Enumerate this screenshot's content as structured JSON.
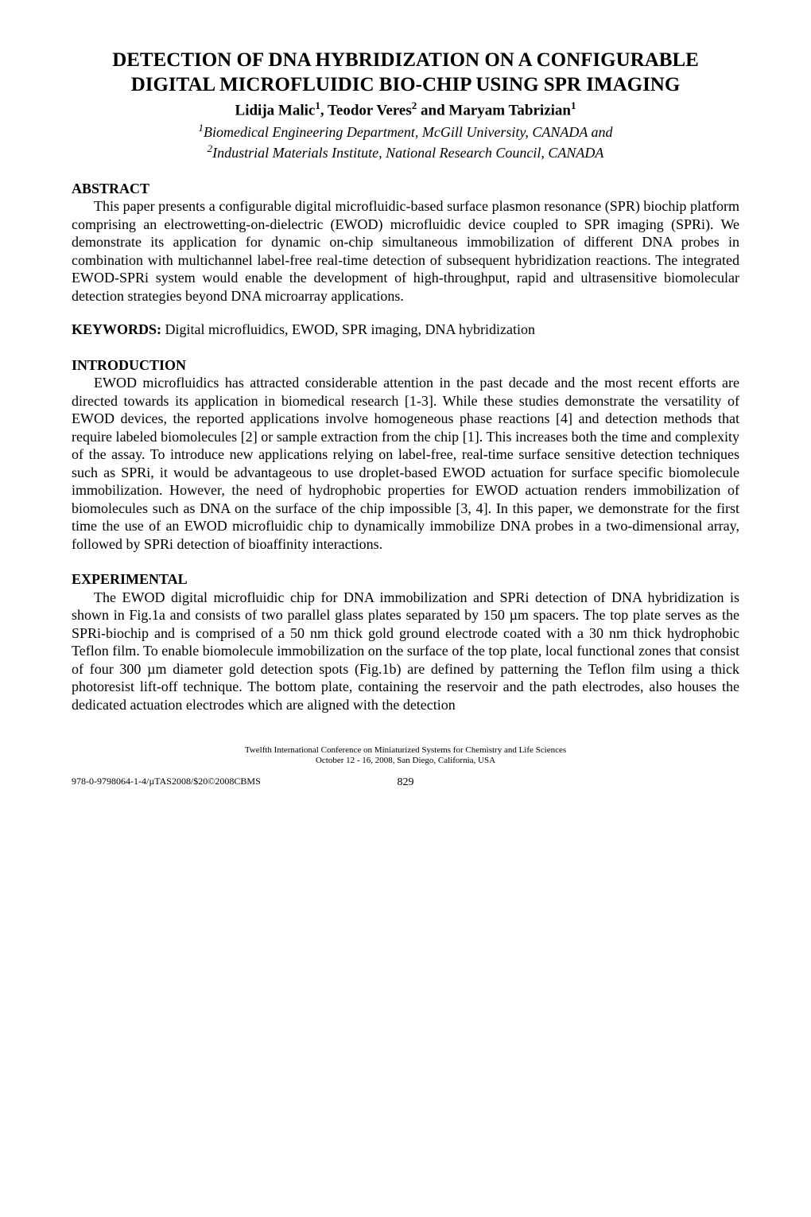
{
  "title": "DETECTION OF DNA HYBRIDIZATION ON A CONFIGURABLE DIGITAL MICROFLUIDIC BIO-CHIP USING SPR IMAGING",
  "authors_html": "Lidija Malic<sup>1</sup>, Teodor Veres<sup>2</sup> and Maryam Tabrizian<sup>1</sup>",
  "affil1_html": "<sup>1</sup>Biomedical Engineering Department, McGill University, CANADA and",
  "affil2_html": "<sup>2</sup>Industrial Materials Institute, National Research Council, CANADA",
  "sections": {
    "abstract": {
      "heading": "ABSTRACT",
      "text": "This paper presents a configurable digital microfluidic-based surface plasmon resonance (SPR) biochip platform comprising an electrowetting-on-dielectric (EWOD) microfluidic device coupled to SPR imaging (SPRi).  We demonstrate its application for dynamic on-chip simultaneous immobilization of different DNA probes in combination with multichannel label-free real-time detection of subsequent hybridization reactions.  The integrated EWOD-SPRi system would enable the development of high-throughput, rapid and ultrasensitive biomolecular detection strategies beyond DNA microarray applications."
    },
    "keywords": {
      "label": "KEYWORDS:",
      "text": " Digital microfluidics, EWOD, SPR imaging, DNA hybridization"
    },
    "introduction": {
      "heading": "INTRODUCTION",
      "text": "EWOD microfluidics has attracted considerable attention in the past decade and the most recent efforts are directed towards its application in biomedical research [1-3].  While these studies demonstrate the versatility of EWOD devices, the reported applications involve homogeneous phase reactions [4] and detection methods that require labeled biomolecules [2] or sample extraction from the chip [1].  This increases both the time and complexity of the assay.  To introduce new applications relying on label-free, real-time surface sensitive detection techniques such as SPRi, it would be advantageous to use droplet-based EWOD actuation for surface specific biomolecule immobilization.  However, the need of hydrophobic properties for EWOD actuation renders immobilization of biomolecules such as DNA on the surface of the chip impossible [3, 4].  In this paper, we demonstrate for the first time the use of an EWOD microfluidic chip to dynamically immobilize DNA probes in a two-dimensional array, followed by SPRi detection of bioaffinity interactions."
    },
    "experimental": {
      "heading": "EXPERIMENTAL",
      "text": "The EWOD digital microfluidic chip for DNA immobilization and SPRi detection of DNA hybridization is shown in Fig.1a and consists of two parallel glass plates separated by 150 µm spacers.  The top plate serves as the SPRi-biochip and is comprised of a 50 nm thick gold ground electrode coated with a 30 nm thick hydrophobic Teflon film.  To enable biomolecule immobilization on the surface of the top plate, local functional zones that consist of four 300 µm diameter gold detection spots (Fig.1b) are defined by patterning the Teflon film using a thick photoresist lift-off technique.  The bottom plate, containing the reservoir and the path electrodes, also houses the dedicated actuation electrodes which are aligned with the detection"
    }
  },
  "footer": {
    "conf_line1": "Twelfth International Conference on Miniaturized Systems for Chemistry and Life Sciences",
    "conf_line2": "October 12 - 16, 2008, San Diego, California, USA",
    "isbn": "978-0-9798064-1-4/µTAS2008/$20©2008CBMS",
    "page": "829"
  }
}
